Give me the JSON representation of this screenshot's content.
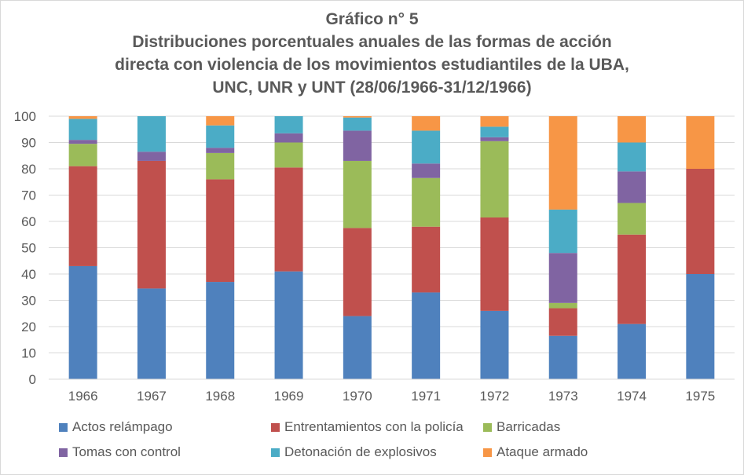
{
  "chart_data": {
    "type": "bar",
    "stacked": true,
    "title": "Gráfico n° 5",
    "subtitle_lines": [
      "Distribuciones porcentuales anuales de las formas de acción",
      "directa con violencia de los movimientos estudiantiles de la UBA,",
      "UNC, UNR y  UNT (28/06/1966-31/12/1966)"
    ],
    "categories": [
      "1966",
      "1967",
      "1968",
      "1969",
      "1970",
      "1971",
      "1972",
      "1973",
      "1974",
      "1975"
    ],
    "ylim": [
      0,
      100
    ],
    "yticks": [
      0,
      10,
      20,
      30,
      40,
      50,
      60,
      70,
      80,
      90,
      100
    ],
    "grid": true,
    "legend_position": "bottom",
    "series": [
      {
        "name": "Actos relámpago",
        "color": "#4f81bd",
        "values": [
          43,
          34.5,
          37,
          41,
          24,
          33,
          26,
          16.5,
          21,
          40
        ]
      },
      {
        "name": "Entrentamientos con la policía",
        "color": "#c0504d",
        "values": [
          38,
          48.5,
          39,
          39.5,
          33.5,
          25,
          35.5,
          10.5,
          34,
          40
        ]
      },
      {
        "name": "Barricadas",
        "color": "#9bbb59",
        "values": [
          8.5,
          0,
          10,
          9.5,
          25.5,
          18.5,
          29,
          2,
          12,
          0
        ]
      },
      {
        "name": "Tomas con control",
        "color": "#8064a2",
        "values": [
          1.5,
          3.5,
          2,
          3.5,
          11.5,
          5.5,
          1.5,
          19,
          12,
          0
        ]
      },
      {
        "name": "Detonación de explosivos",
        "color": "#4bacc6",
        "values": [
          8,
          13.5,
          8.5,
          6.5,
          5,
          12.5,
          4,
          16.5,
          11,
          0
        ]
      },
      {
        "name": "Ataque armado",
        "color": "#f79646",
        "values": [
          1,
          0,
          3.5,
          0,
          0.5,
          5.5,
          4,
          35.5,
          10,
          20
        ]
      }
    ]
  }
}
